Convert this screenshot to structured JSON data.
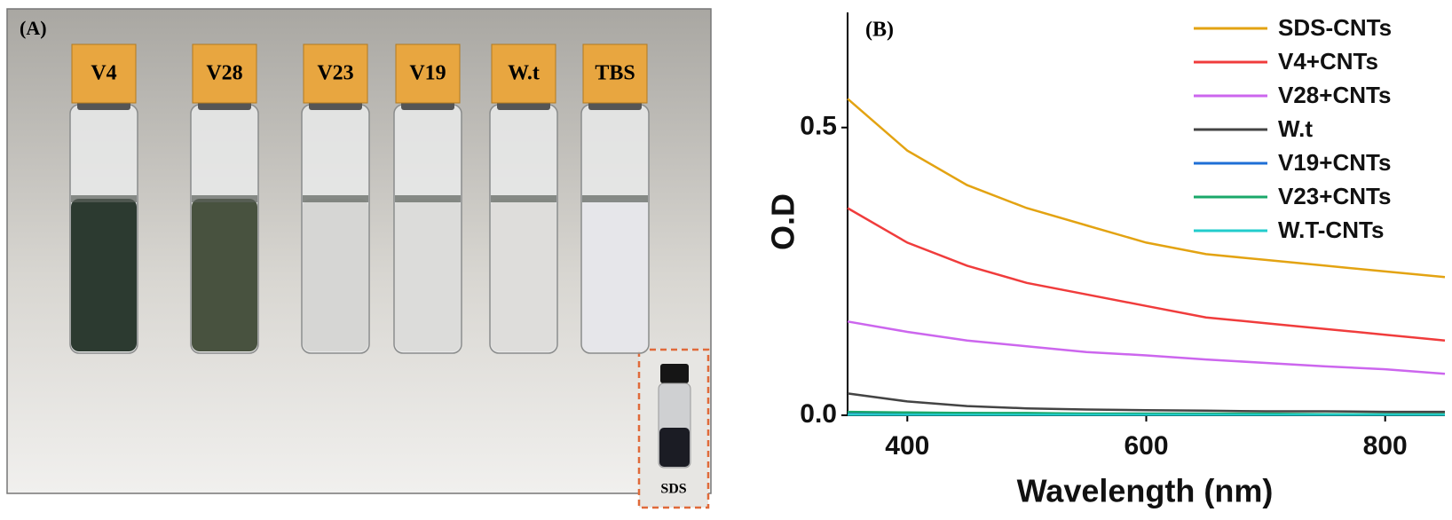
{
  "panel_a": {
    "label": "(A)",
    "vial_labels": [
      "V4",
      "V28",
      "V23",
      "V19",
      "W.t",
      "TBS"
    ],
    "inset_label": "SDS"
  },
  "chart_data": {
    "type": "line",
    "panel_label": "(B)",
    "x_label": "Wavelength (nm)",
    "y_label": "O.D",
    "x": [
      350,
      400,
      450,
      500,
      550,
      600,
      650,
      700,
      750,
      800,
      850
    ],
    "series": [
      {
        "name": "SDS-CNTs",
        "color": "#e3a312",
        "values": [
          0.55,
          0.46,
          0.4,
          0.36,
          0.33,
          0.3,
          0.28,
          0.27,
          0.26,
          0.25,
          0.24
        ]
      },
      {
        "name": "V4+CNTs",
        "color": "#f03c3c",
        "values": [
          0.36,
          0.3,
          0.26,
          0.23,
          0.21,
          0.19,
          0.17,
          0.16,
          0.15,
          0.14,
          0.13
        ]
      },
      {
        "name": "V28+CNTs",
        "color": "#cc66ee",
        "values": [
          0.163,
          0.145,
          0.13,
          0.12,
          0.11,
          0.104,
          0.097,
          0.091,
          0.085,
          0.08,
          0.072
        ]
      },
      {
        "name": "W.t",
        "color": "#444444",
        "values": [
          0.038,
          0.024,
          0.016,
          0.012,
          0.01,
          0.009,
          0.008,
          0.007,
          0.007,
          0.006,
          0.006
        ]
      },
      {
        "name": "V19+CNTs",
        "color": "#1f6fd6",
        "values": [
          0.005,
          0.004,
          0.004,
          0.003,
          0.003,
          0.003,
          0.003,
          0.002,
          0.002,
          0.002,
          0.002
        ]
      },
      {
        "name": "V23+CNTs",
        "color": "#1aa86a",
        "values": [
          0.006,
          0.005,
          0.004,
          0.004,
          0.003,
          0.003,
          0.003,
          0.003,
          0.002,
          0.002,
          0.002
        ]
      },
      {
        "name": "W.T-CNTs",
        "color": "#22cccc",
        "values": [
          0.001,
          0.001,
          0.001,
          0.001,
          0.001,
          0.001,
          0.001,
          0.001,
          0.001,
          0.001,
          0.001
        ]
      }
    ],
    "xlim": [
      350,
      850
    ],
    "xticks": [
      400,
      600,
      800
    ],
    "ylim": [
      0,
      0.7
    ],
    "yticks": [
      {
        "value": 0,
        "label": "0.0"
      },
      {
        "value": 0.5,
        "label": "0.5"
      }
    ],
    "legend": "upper right"
  }
}
